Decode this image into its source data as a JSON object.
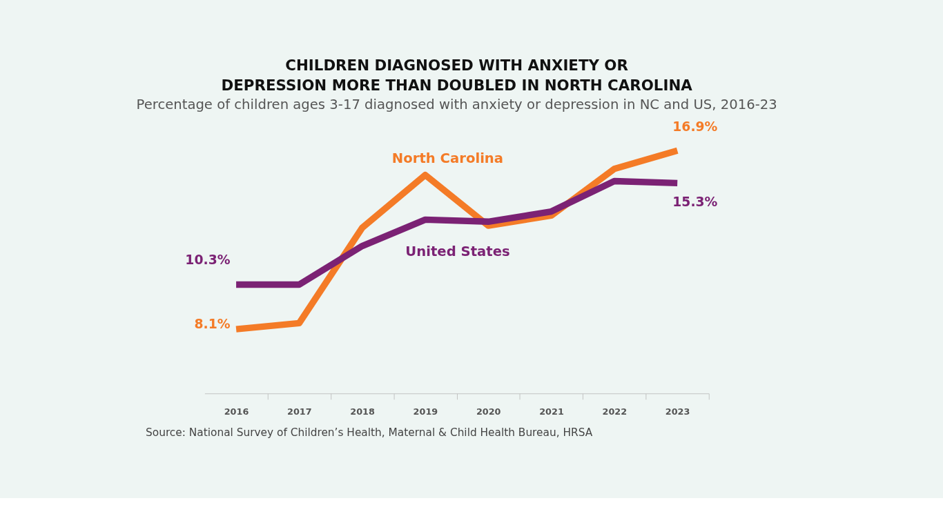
{
  "chart_data": {
    "type": "line",
    "title": "CHILDREN DIAGNOSED WITH ANXIETY OR\nDEPRESSION MORE THAN DOUBLED IN NORTH CAROLINA",
    "subtitle": "Percentage of children ages 3-17 diagnosed with anxiety or depression in NC and US, 2016-23",
    "categories": [
      "2016",
      "2017",
      "2018",
      "2019",
      "2020",
      "2021",
      "2022",
      "2023"
    ],
    "series": [
      {
        "name": "North Carolina",
        "color": "#f47b27",
        "values": [
          8.1,
          8.4,
          13.1,
          15.7,
          13.2,
          13.7,
          16.0,
          16.9
        ],
        "value_labels": [
          "8.1%",
          null,
          null,
          null,
          null,
          null,
          null,
          "16.9%"
        ]
      },
      {
        "name": "United States",
        "color": "#7b2274",
        "values": [
          10.3,
          10.3,
          12.2,
          13.5,
          13.4,
          13.9,
          15.4,
          15.3
        ],
        "value_labels": [
          "10.3%",
          null,
          null,
          null,
          null,
          null,
          null,
          "15.3%"
        ]
      }
    ],
    "annotations": [
      "Source: National Survey of Children’s Health, Maternal & Child Health Bureau, HRSA"
    ],
    "marker": "none",
    "line_style": "solid"
  }
}
